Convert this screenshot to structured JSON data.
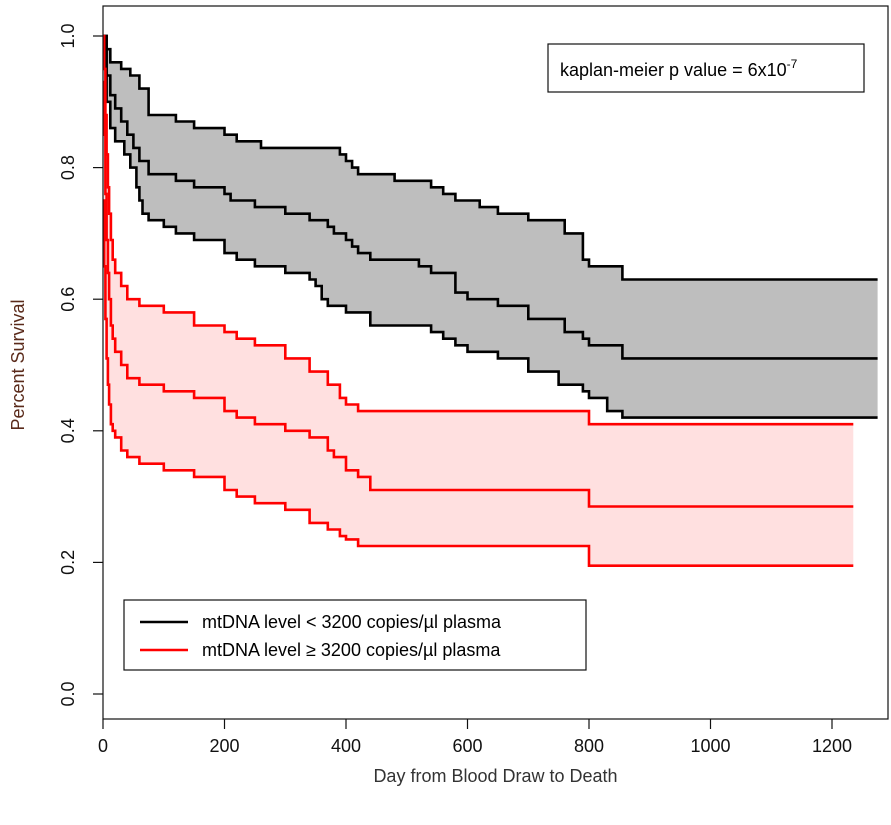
{
  "chart_data": {
    "type": "line",
    "title": "",
    "xlabel": "Day from Blood Draw to Death",
    "ylabel": "Percent Survival",
    "xlim": [
      0,
      1280
    ],
    "ylim": [
      0,
      1.0
    ],
    "x_ticks": [
      0,
      200,
      400,
      600,
      800,
      1000,
      1200
    ],
    "y_ticks": [
      0.0,
      0.2,
      0.4,
      0.6,
      0.8,
      1.0
    ],
    "y_tick_labels": [
      "0.0",
      "0.2",
      "0.4",
      "0.6",
      "0.8",
      "1.0"
    ],
    "grid": false,
    "legend_position": "bottom-left",
    "annotation": {
      "text": "kaplan-meier p value = 6x10",
      "superscript": "-7"
    },
    "colors": {
      "axis": "#111111",
      "series_low": "#000000",
      "series_high": "#ff0000",
      "band_low": "#bebebe",
      "band_high": "#ffe0e0",
      "xlabel": "#333333",
      "ylabel": "#5a2a1a"
    },
    "series": [
      {
        "name": "mtDNA level < 3200 copies/µl plasma",
        "color": "#000000",
        "estimate": [
          [
            0,
            1.0
          ],
          [
            6,
            0.94
          ],
          [
            12,
            0.91
          ],
          [
            20,
            0.89
          ],
          [
            30,
            0.87
          ],
          [
            40,
            0.85
          ],
          [
            50,
            0.83
          ],
          [
            60,
            0.81
          ],
          [
            75,
            0.79
          ],
          [
            120,
            0.78
          ],
          [
            150,
            0.77
          ],
          [
            200,
            0.76
          ],
          [
            210,
            0.75
          ],
          [
            250,
            0.74
          ],
          [
            300,
            0.73
          ],
          [
            340,
            0.72
          ],
          [
            370,
            0.71
          ],
          [
            380,
            0.7
          ],
          [
            400,
            0.69
          ],
          [
            410,
            0.68
          ],
          [
            420,
            0.67
          ],
          [
            440,
            0.66
          ],
          [
            520,
            0.65
          ],
          [
            540,
            0.64
          ],
          [
            580,
            0.61
          ],
          [
            600,
            0.6
          ],
          [
            650,
            0.59
          ],
          [
            700,
            0.57
          ],
          [
            760,
            0.55
          ],
          [
            790,
            0.54
          ],
          [
            800,
            0.53
          ],
          [
            855,
            0.51
          ],
          [
            1275,
            0.51
          ]
        ],
        "upper": [
          [
            0,
            1.0
          ],
          [
            6,
            0.98
          ],
          [
            12,
            0.96
          ],
          [
            30,
            0.95
          ],
          [
            45,
            0.94
          ],
          [
            60,
            0.92
          ],
          [
            75,
            0.88
          ],
          [
            120,
            0.87
          ],
          [
            150,
            0.86
          ],
          [
            200,
            0.85
          ],
          [
            220,
            0.84
          ],
          [
            260,
            0.83
          ],
          [
            310,
            0.83
          ],
          [
            390,
            0.82
          ],
          [
            400,
            0.81
          ],
          [
            410,
            0.8
          ],
          [
            420,
            0.79
          ],
          [
            480,
            0.78
          ],
          [
            540,
            0.77
          ],
          [
            560,
            0.76
          ],
          [
            580,
            0.75
          ],
          [
            620,
            0.74
          ],
          [
            650,
            0.73
          ],
          [
            700,
            0.72
          ],
          [
            760,
            0.7
          ],
          [
            790,
            0.66
          ],
          [
            800,
            0.65
          ],
          [
            855,
            0.63
          ],
          [
            1275,
            0.63
          ]
        ],
        "lower": [
          [
            0,
            1.0
          ],
          [
            6,
            0.9
          ],
          [
            12,
            0.86
          ],
          [
            20,
            0.84
          ],
          [
            35,
            0.82
          ],
          [
            45,
            0.8
          ],
          [
            55,
            0.77
          ],
          [
            60,
            0.75
          ],
          [
            65,
            0.73
          ],
          [
            75,
            0.72
          ],
          [
            100,
            0.71
          ],
          [
            120,
            0.7
          ],
          [
            150,
            0.69
          ],
          [
            200,
            0.67
          ],
          [
            220,
            0.66
          ],
          [
            250,
            0.65
          ],
          [
            300,
            0.64
          ],
          [
            340,
            0.63
          ],
          [
            350,
            0.62
          ],
          [
            360,
            0.6
          ],
          [
            370,
            0.59
          ],
          [
            400,
            0.58
          ],
          [
            440,
            0.56
          ],
          [
            540,
            0.55
          ],
          [
            560,
            0.54
          ],
          [
            580,
            0.53
          ],
          [
            600,
            0.52
          ],
          [
            650,
            0.51
          ],
          [
            700,
            0.49
          ],
          [
            750,
            0.47
          ],
          [
            790,
            0.46
          ],
          [
            800,
            0.45
          ],
          [
            830,
            0.43
          ],
          [
            855,
            0.42
          ],
          [
            1275,
            0.42
          ]
        ]
      },
      {
        "name": "mtDNA level ≥ 3200 copies/µl plasma",
        "color": "#ff0000",
        "estimate": [
          [
            0,
            0.93
          ],
          [
            2,
            0.85
          ],
          [
            4,
            0.76
          ],
          [
            6,
            0.69
          ],
          [
            8,
            0.64
          ],
          [
            10,
            0.6
          ],
          [
            13,
            0.56
          ],
          [
            16,
            0.54
          ],
          [
            20,
            0.52
          ],
          [
            30,
            0.5
          ],
          [
            40,
            0.48
          ],
          [
            60,
            0.47
          ],
          [
            100,
            0.46
          ],
          [
            150,
            0.45
          ],
          [
            200,
            0.43
          ],
          [
            220,
            0.42
          ],
          [
            250,
            0.41
          ],
          [
            300,
            0.4
          ],
          [
            340,
            0.39
          ],
          [
            370,
            0.37
          ],
          [
            380,
            0.36
          ],
          [
            400,
            0.34
          ],
          [
            420,
            0.33
          ],
          [
            440,
            0.31
          ],
          [
            795,
            0.31
          ],
          [
            800,
            0.285
          ],
          [
            1235,
            0.285
          ]
        ],
        "upper": [
          [
            0,
            1.0
          ],
          [
            2,
            0.95
          ],
          [
            4,
            0.88
          ],
          [
            6,
            0.82
          ],
          [
            8,
            0.77
          ],
          [
            10,
            0.73
          ],
          [
            13,
            0.69
          ],
          [
            16,
            0.66
          ],
          [
            20,
            0.64
          ],
          [
            30,
            0.62
          ],
          [
            40,
            0.6
          ],
          [
            60,
            0.59
          ],
          [
            100,
            0.58
          ],
          [
            150,
            0.56
          ],
          [
            200,
            0.55
          ],
          [
            220,
            0.54
          ],
          [
            250,
            0.53
          ],
          [
            300,
            0.51
          ],
          [
            340,
            0.49
          ],
          [
            370,
            0.47
          ],
          [
            390,
            0.45
          ],
          [
            400,
            0.44
          ],
          [
            420,
            0.43
          ],
          [
            795,
            0.43
          ],
          [
            800,
            0.41
          ],
          [
            1235,
            0.41
          ]
        ],
        "lower": [
          [
            0,
            0.75
          ],
          [
            2,
            0.65
          ],
          [
            4,
            0.57
          ],
          [
            6,
            0.51
          ],
          [
            8,
            0.47
          ],
          [
            10,
            0.44
          ],
          [
            13,
            0.41
          ],
          [
            16,
            0.4
          ],
          [
            20,
            0.39
          ],
          [
            30,
            0.37
          ],
          [
            40,
            0.36
          ],
          [
            60,
            0.35
          ],
          [
            100,
            0.34
          ],
          [
            150,
            0.33
          ],
          [
            200,
            0.31
          ],
          [
            220,
            0.3
          ],
          [
            250,
            0.29
          ],
          [
            300,
            0.28
          ],
          [
            340,
            0.26
          ],
          [
            370,
            0.25
          ],
          [
            390,
            0.24
          ],
          [
            400,
            0.235
          ],
          [
            420,
            0.225
          ],
          [
            795,
            0.225
          ],
          [
            800,
            0.195
          ],
          [
            1235,
            0.195
          ]
        ]
      }
    ]
  }
}
